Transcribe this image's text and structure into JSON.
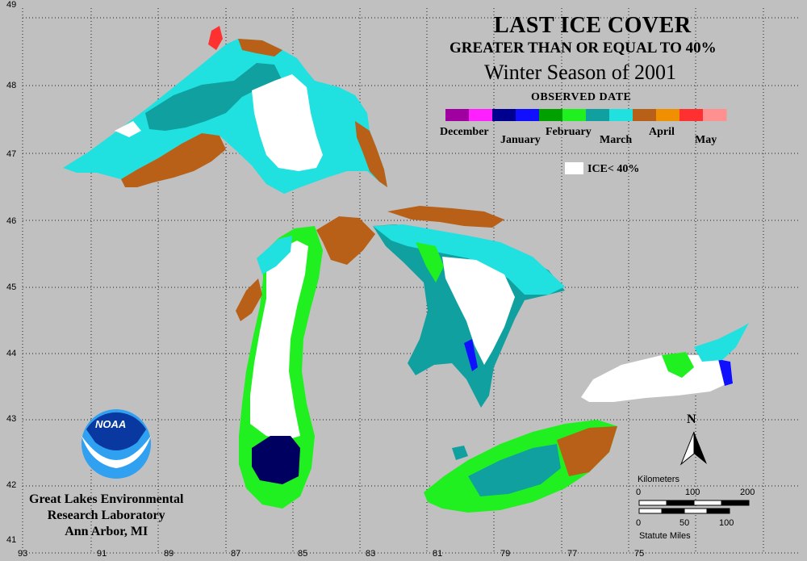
{
  "title": "LAST ICE COVER",
  "subtitle": "GREATER THAN OR EQUAL TO 40%",
  "season": "Winter Season of 2001",
  "legend": {
    "heading": "OBSERVED DATE",
    "months": [
      "December",
      "January",
      "February",
      "March",
      "April",
      "May"
    ],
    "colors": [
      "#a000a0",
      "#ff20ff",
      "#000090",
      "#1010ff",
      "#00a000",
      "#20f020",
      "#10a0a0",
      "#20e0e0",
      "#b86018",
      "#f09000",
      "#ff3030",
      "#ff9090"
    ],
    "ice_label": "ICE< 40%",
    "ice_color": "#ffffff"
  },
  "axes": {
    "lat_labels": [
      "49",
      "48",
      "47",
      "46",
      "45",
      "44",
      "43",
      "42",
      "41"
    ],
    "lon_labels": [
      "93",
      "91",
      "89",
      "87",
      "85",
      "83",
      "81",
      "79",
      "77",
      "75"
    ]
  },
  "north_label": "N",
  "scale": {
    "km_title": "Kilometers",
    "km_ticks": [
      "0",
      "100",
      "200"
    ],
    "mi_ticks": [
      "0",
      "50",
      "100"
    ],
    "mi_title": "Statute Miles"
  },
  "logo_text": "NOAA",
  "organization": [
    "Great Lakes Environmental",
    "Research Laboratory",
    "Ann Arbor, MI"
  ]
}
